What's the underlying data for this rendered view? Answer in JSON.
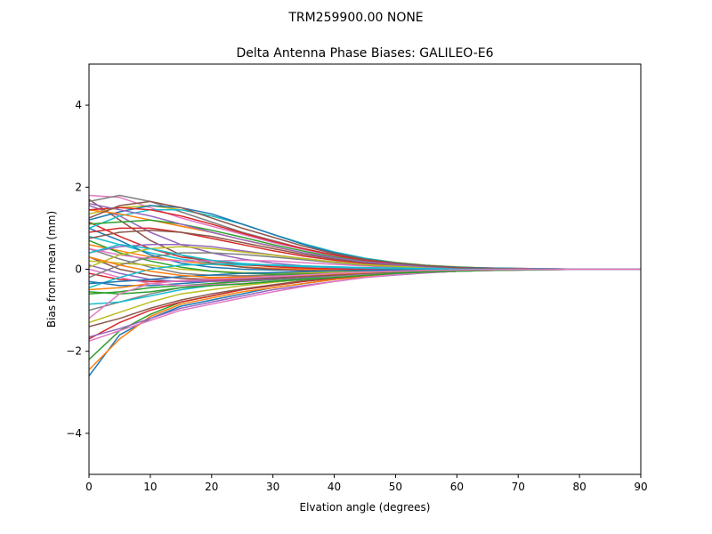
{
  "figure": {
    "suptitle": "TRM259900.00    NONE"
  },
  "chart_data": {
    "type": "line",
    "title": "Delta Antenna Phase Biases: GALILEO-E6",
    "xlabel": "Elvation angle (degrees)",
    "ylabel": "Bias from mean (mm)",
    "xlim": [
      0,
      90
    ],
    "ylim": [
      -5,
      5
    ],
    "xticks": [
      0,
      10,
      20,
      30,
      40,
      50,
      60,
      70,
      80,
      90
    ],
    "yticks": [
      -4,
      -2,
      0,
      2,
      4
    ],
    "ytick_labels": [
      "−4",
      "−2",
      "0",
      "2",
      "4"
    ],
    "grid": false,
    "legend": "none",
    "x": [
      0,
      5,
      10,
      15,
      20,
      25,
      30,
      35,
      40,
      45,
      50,
      55,
      60,
      65,
      70,
      75,
      80,
      85,
      90
    ],
    "series": [
      {
        "color": "#1f77b4",
        "values": [
          -2.6,
          -1.6,
          -1.2,
          -0.9,
          -0.75,
          -0.6,
          -0.45,
          -0.35,
          -0.25,
          -0.18,
          -0.12,
          -0.08,
          -0.05,
          -0.03,
          -0.02,
          -0.01,
          0,
          0,
          0
        ]
      },
      {
        "color": "#ff7f0e",
        "values": [
          -2.45,
          -1.7,
          -1.15,
          -0.85,
          -0.7,
          -0.55,
          -0.45,
          -0.35,
          -0.25,
          -0.18,
          -0.12,
          -0.08,
          -0.05,
          -0.03,
          -0.02,
          -0.01,
          0,
          0,
          0
        ]
      },
      {
        "color": "#2ca02c",
        "values": [
          -2.2,
          -1.5,
          -1.1,
          -0.8,
          -0.65,
          -0.5,
          -0.4,
          -0.3,
          -0.22,
          -0.15,
          -0.1,
          -0.07,
          -0.04,
          -0.02,
          -0.01,
          0,
          0,
          0,
          0
        ]
      },
      {
        "color": "#d62728",
        "values": [
          -1.7,
          -1.3,
          -1.0,
          -0.8,
          -0.65,
          -0.5,
          -0.4,
          -0.3,
          -0.22,
          -0.15,
          -0.1,
          -0.06,
          -0.04,
          -0.02,
          -0.01,
          0,
          0,
          0,
          0
        ]
      },
      {
        "color": "#9467bd",
        "values": [
          -1.65,
          -1.45,
          -1.2,
          -0.95,
          -0.8,
          -0.65,
          -0.5,
          -0.4,
          -0.3,
          -0.2,
          -0.14,
          -0.09,
          -0.05,
          -0.03,
          -0.02,
          -0.01,
          0,
          0,
          0
        ]
      },
      {
        "color": "#8c564b",
        "values": [
          -1.4,
          -1.2,
          -0.95,
          -0.75,
          -0.6,
          -0.48,
          -0.38,
          -0.28,
          -0.2,
          -0.14,
          -0.09,
          -0.06,
          -0.04,
          -0.02,
          -0.01,
          0,
          0,
          0,
          0
        ]
      },
      {
        "color": "#e377c2",
        "values": [
          -1.75,
          -1.5,
          -1.25,
          -1.0,
          -0.85,
          -0.7,
          -0.55,
          -0.42,
          -0.3,
          -0.2,
          -0.13,
          -0.08,
          -0.05,
          -0.03,
          -0.02,
          -0.01,
          0,
          0,
          0
        ]
      },
      {
        "color": "#7f7f7f",
        "values": [
          -1.0,
          -0.8,
          -0.6,
          -0.45,
          -0.35,
          -0.28,
          -0.22,
          -0.18,
          -0.13,
          -0.09,
          -0.06,
          -0.04,
          -0.03,
          -0.02,
          -0.01,
          0,
          0,
          0,
          0
        ]
      },
      {
        "color": "#bcbd22",
        "values": [
          -1.3,
          -1.05,
          -0.8,
          -0.6,
          -0.5,
          -0.4,
          -0.32,
          -0.25,
          -0.18,
          -0.12,
          -0.08,
          -0.05,
          -0.03,
          -0.02,
          -0.01,
          0,
          0,
          0,
          0
        ]
      },
      {
        "color": "#17becf",
        "values": [
          -0.85,
          -0.8,
          -0.65,
          -0.5,
          -0.4,
          -0.35,
          -0.3,
          -0.25,
          -0.2,
          -0.15,
          -0.1,
          -0.06,
          -0.04,
          -0.02,
          -0.01,
          0,
          0,
          0,
          0
        ]
      },
      {
        "color": "#1f77b4",
        "values": [
          -0.3,
          -0.4,
          -0.4,
          -0.35,
          -0.3,
          -0.25,
          -0.2,
          -0.16,
          -0.12,
          -0.09,
          -0.06,
          -0.04,
          -0.03,
          -0.02,
          -0.01,
          0,
          0,
          0,
          0
        ]
      },
      {
        "color": "#ff7f0e",
        "values": [
          -0.5,
          -0.45,
          -0.35,
          -0.28,
          -0.22,
          -0.18,
          -0.14,
          -0.1,
          -0.08,
          -0.06,
          -0.04,
          -0.03,
          -0.02,
          -0.01,
          0,
          0,
          0,
          0,
          0
        ]
      },
      {
        "color": "#2ca02c",
        "values": [
          -0.6,
          -0.55,
          -0.45,
          -0.4,
          -0.35,
          -0.3,
          -0.26,
          -0.22,
          -0.18,
          -0.14,
          -0.1,
          -0.07,
          -0.05,
          -0.03,
          -0.02,
          -0.01,
          0,
          0,
          0
        ]
      },
      {
        "color": "#d62728",
        "values": [
          -0.1,
          -0.25,
          -0.3,
          -0.3,
          -0.28,
          -0.25,
          -0.22,
          -0.18,
          -0.14,
          -0.1,
          -0.07,
          -0.05,
          -0.03,
          -0.02,
          -0.01,
          0,
          0,
          0,
          0
        ]
      },
      {
        "color": "#9467bd",
        "values": [
          0.1,
          -0.1,
          -0.25,
          -0.3,
          -0.3,
          -0.28,
          -0.24,
          -0.2,
          -0.15,
          -0.11,
          -0.08,
          -0.05,
          -0.03,
          -0.02,
          -0.01,
          0,
          0,
          0,
          0
        ]
      },
      {
        "color": "#8c564b",
        "values": [
          0.3,
          0.0,
          -0.15,
          -0.22,
          -0.25,
          -0.24,
          -0.22,
          -0.18,
          -0.14,
          -0.1,
          -0.07,
          -0.05,
          -0.03,
          -0.02,
          -0.01,
          0,
          0,
          0,
          0
        ]
      },
      {
        "color": "#e377c2",
        "values": [
          0.0,
          -0.2,
          -0.35,
          -0.4,
          -0.38,
          -0.35,
          -0.3,
          -0.25,
          -0.19,
          -0.14,
          -0.1,
          -0.06,
          -0.04,
          -0.02,
          -0.01,
          0,
          0,
          0,
          0
        ]
      },
      {
        "color": "#7f7f7f",
        "values": [
          0.5,
          0.25,
          0.05,
          -0.1,
          -0.15,
          -0.16,
          -0.15,
          -0.13,
          -0.1,
          -0.08,
          -0.05,
          -0.04,
          -0.02,
          -0.01,
          0,
          0,
          0,
          0,
          0
        ]
      },
      {
        "color": "#bcbd22",
        "values": [
          0.2,
          0.15,
          0.1,
          0.0,
          -0.05,
          -0.08,
          -0.09,
          -0.08,
          -0.07,
          -0.05,
          -0.04,
          -0.03,
          -0.02,
          -0.01,
          0,
          0,
          0,
          0,
          0
        ]
      },
      {
        "color": "#17becf",
        "values": [
          0.8,
          0.6,
          0.4,
          0.25,
          0.15,
          0.1,
          0.08,
          0.06,
          0.05,
          0.04,
          0.03,
          0.02,
          0.01,
          0.01,
          0,
          0,
          0,
          0,
          0
        ]
      },
      {
        "color": "#1f77b4",
        "values": [
          1.0,
          0.7,
          0.35,
          0.15,
          0.05,
          0.0,
          -0.02,
          -0.03,
          -0.03,
          -0.02,
          -0.02,
          -0.01,
          -0.01,
          0,
          0,
          0,
          0,
          0,
          0
        ]
      },
      {
        "color": "#ff7f0e",
        "values": [
          0.6,
          0.45,
          0.3,
          0.2,
          0.12,
          0.06,
          0.02,
          0.0,
          -0.01,
          -0.01,
          -0.01,
          0,
          0,
          0,
          0,
          0,
          0,
          0,
          0
        ]
      },
      {
        "color": "#2ca02c",
        "values": [
          0.7,
          0.4,
          0.2,
          0.05,
          -0.05,
          -0.1,
          -0.12,
          -0.12,
          -0.1,
          -0.08,
          -0.06,
          -0.04,
          -0.02,
          -0.01,
          0,
          0,
          0,
          0,
          0
        ]
      },
      {
        "color": "#d62728",
        "values": [
          1.15,
          0.8,
          0.5,
          0.3,
          0.2,
          0.12,
          0.06,
          0.03,
          0.01,
          0.0,
          0.0,
          0,
          0,
          0,
          0,
          0,
          0,
          0,
          0
        ]
      },
      {
        "color": "#9467bd",
        "values": [
          1.55,
          1.3,
          0.9,
          0.6,
          0.4,
          0.25,
          0.15,
          0.08,
          0.04,
          0.02,
          0.01,
          0,
          0,
          0,
          0,
          0,
          0,
          0,
          0
        ]
      },
      {
        "color": "#8c564b",
        "values": [
          1.7,
          1.2,
          0.7,
          0.35,
          0.15,
          0.05,
          0.0,
          -0.03,
          -0.04,
          -0.03,
          -0.02,
          -0.01,
          0,
          0,
          0,
          0,
          0,
          0,
          0
        ]
      },
      {
        "color": "#e377c2",
        "values": [
          1.8,
          1.75,
          1.5,
          1.25,
          1.05,
          0.85,
          0.65,
          0.48,
          0.33,
          0.22,
          0.14,
          0.09,
          0.05,
          0.03,
          0.02,
          0.01,
          0,
          0,
          0
        ]
      },
      {
        "color": "#7f7f7f",
        "values": [
          1.65,
          1.8,
          1.65,
          1.4,
          1.15,
          0.9,
          0.7,
          0.5,
          0.35,
          0.22,
          0.14,
          0.08,
          0.05,
          0.03,
          0.02,
          0.01,
          0,
          0,
          0
        ]
      },
      {
        "color": "#bcbd22",
        "values": [
          1.35,
          1.5,
          1.55,
          1.45,
          1.3,
          1.1,
          0.85,
          0.62,
          0.42,
          0.27,
          0.17,
          0.1,
          0.06,
          0.03,
          0.02,
          0.01,
          0,
          0,
          0
        ]
      },
      {
        "color": "#17becf",
        "values": [
          1.0,
          1.3,
          1.45,
          1.45,
          1.3,
          1.1,
          0.85,
          0.62,
          0.42,
          0.27,
          0.16,
          0.09,
          0.05,
          0.03,
          0.02,
          0.01,
          0,
          0,
          0
        ]
      },
      {
        "color": "#1f77b4",
        "values": [
          1.2,
          1.4,
          1.55,
          1.5,
          1.35,
          1.1,
          0.85,
          0.6,
          0.4,
          0.25,
          0.15,
          0.09,
          0.05,
          0.03,
          0.02,
          0.01,
          0,
          0,
          0
        ]
      },
      {
        "color": "#ff7f0e",
        "values": [
          1.45,
          1.35,
          1.2,
          1.05,
          0.9,
          0.72,
          0.55,
          0.4,
          0.27,
          0.17,
          0.1,
          0.06,
          0.03,
          0.02,
          0.01,
          0,
          0,
          0,
          0
        ]
      },
      {
        "color": "#2ca02c",
        "values": [
          1.1,
          1.15,
          1.2,
          1.1,
          0.95,
          0.78,
          0.6,
          0.44,
          0.3,
          0.19,
          0.11,
          0.06,
          0.03,
          0.02,
          0.01,
          0,
          0,
          0,
          0
        ]
      },
      {
        "color": "#d62728",
        "values": [
          0.9,
          1.0,
          1.0,
          0.9,
          0.75,
          0.6,
          0.45,
          0.32,
          0.22,
          0.14,
          0.08,
          0.05,
          0.03,
          0.02,
          0.01,
          0,
          0,
          0,
          0
        ]
      },
      {
        "color": "#9467bd",
        "values": [
          0.4,
          0.55,
          0.6,
          0.6,
          0.55,
          0.45,
          0.35,
          0.26,
          0.18,
          0.11,
          0.07,
          0.04,
          0.02,
          0.01,
          0,
          0,
          0,
          0,
          0
        ]
      },
      {
        "color": "#8c564b",
        "values": [
          0.75,
          0.9,
          0.95,
          0.9,
          0.8,
          0.65,
          0.5,
          0.36,
          0.25,
          0.16,
          0.1,
          0.06,
          0.03,
          0.02,
          0.01,
          0,
          0,
          0,
          0
        ]
      },
      {
        "color": "#e377c2",
        "values": [
          0.5,
          0.35,
          0.25,
          0.2,
          0.2,
          0.22,
          0.2,
          0.16,
          0.12,
          0.08,
          0.05,
          0.03,
          0.02,
          0.01,
          0,
          0,
          0,
          0,
          0
        ]
      },
      {
        "color": "#7f7f7f",
        "values": [
          -0.2,
          0.1,
          0.3,
          0.4,
          0.4,
          0.36,
          0.3,
          0.23,
          0.16,
          0.1,
          0.06,
          0.04,
          0.02,
          0.01,
          0,
          0,
          0,
          0,
          0
        ]
      },
      {
        "color": "#bcbd22",
        "values": [
          0.05,
          0.35,
          0.5,
          0.55,
          0.5,
          0.42,
          0.34,
          0.26,
          0.18,
          0.11,
          0.07,
          0.04,
          0.02,
          0.01,
          0,
          0,
          0,
          0,
          0
        ]
      },
      {
        "color": "#17becf",
        "values": [
          -0.45,
          -0.2,
          0.0,
          0.1,
          0.12,
          0.12,
          0.1,
          0.08,
          0.06,
          0.04,
          0.03,
          0.02,
          0.01,
          0,
          0,
          0,
          0,
          0,
          0
        ]
      },
      {
        "color": "#1f77b4",
        "values": [
          -0.35,
          -0.3,
          -0.25,
          -0.18,
          -0.14,
          -0.1,
          -0.08,
          -0.06,
          -0.04,
          -0.03,
          -0.02,
          -0.01,
          0,
          0,
          0,
          0,
          0,
          0,
          0
        ]
      },
      {
        "color": "#ff7f0e",
        "values": [
          0.3,
          0.1,
          -0.05,
          -0.15,
          -0.2,
          -0.2,
          -0.18,
          -0.15,
          -0.11,
          -0.08,
          -0.05,
          -0.03,
          -0.02,
          -0.01,
          0,
          0,
          0,
          0,
          0
        ]
      },
      {
        "color": "#2ca02c",
        "values": [
          -0.55,
          -0.6,
          -0.55,
          -0.45,
          -0.4,
          -0.36,
          -0.3,
          -0.25,
          -0.2,
          -0.15,
          -0.1,
          -0.06,
          -0.04,
          -0.02,
          -0.01,
          0,
          0,
          0,
          0
        ]
      },
      {
        "color": "#d62728",
        "values": [
          1.45,
          1.5,
          1.45,
          1.3,
          1.1,
          0.88,
          0.68,
          0.5,
          0.34,
          0.22,
          0.13,
          0.08,
          0.04,
          0.02,
          0.01,
          0,
          0,
          0,
          0
        ]
      },
      {
        "color": "#9467bd",
        "values": [
          1.6,
          1.45,
          1.3,
          1.1,
          0.9,
          0.72,
          0.56,
          0.4,
          0.28,
          0.18,
          0.11,
          0.06,
          0.03,
          0.02,
          0.01,
          0,
          0,
          0,
          0
        ]
      },
      {
        "color": "#8c564b",
        "values": [
          1.25,
          1.55,
          1.65,
          1.5,
          1.25,
          1.0,
          0.78,
          0.56,
          0.38,
          0.24,
          0.15,
          0.08,
          0.04,
          0.02,
          0.01,
          0,
          0,
          0,
          0
        ]
      },
      {
        "color": "#17becf",
        "values": [
          0.4,
          0.6,
          0.5,
          0.35,
          0.22,
          0.14,
          0.1,
          0.07,
          0.05,
          0.03,
          0.02,
          0.01,
          0,
          0,
          0,
          0,
          0,
          0,
          0
        ]
      },
      {
        "color": "#e377c2",
        "values": [
          -1.2,
          -0.6,
          -0.35,
          -0.28,
          -0.25,
          -0.22,
          -0.18,
          -0.14,
          -0.1,
          -0.07,
          -0.05,
          -0.03,
          -0.02,
          -0.01,
          0,
          0,
          0,
          0,
          0
        ]
      }
    ]
  }
}
